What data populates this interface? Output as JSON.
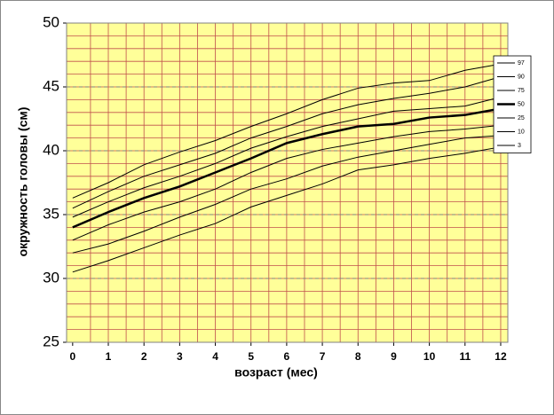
{
  "chart_data": {
    "type": "line",
    "x_label": "возраст (мес)",
    "y_label": "окружность головы (см)",
    "x": [
      0,
      1,
      2,
      3,
      4,
      5,
      6,
      7,
      8,
      9,
      10,
      11,
      12
    ],
    "xlim": [
      -0.17,
      12.2
    ],
    "xticks": [
      0,
      1,
      2,
      3,
      4,
      5,
      6,
      7,
      8,
      9,
      10,
      11,
      12
    ],
    "ylim": [
      25,
      50
    ],
    "yticks": [
      25,
      30,
      35,
      40,
      45,
      50
    ],
    "grid": true,
    "background": "#ffff99",
    "legend": "right",
    "series": [
      {
        "name": "97",
        "color": "#000000",
        "line_width": 1,
        "values": [
          36.3,
          37.5,
          38.9,
          39.9,
          40.8,
          41.9,
          42.9,
          44.0,
          44.9,
          45.3,
          45.5,
          46.3,
          46.8
        ]
      },
      {
        "name": "90",
        "color": "#000000",
        "line_width": 1,
        "values": [
          35.5,
          36.8,
          38.0,
          38.9,
          39.8,
          41.0,
          41.9,
          42.9,
          43.6,
          44.1,
          44.5,
          45.0,
          45.8
        ]
      },
      {
        "name": "75",
        "color": "#000000",
        "line_width": 1,
        "values": [
          34.8,
          36.0,
          37.1,
          38.0,
          39.0,
          40.2,
          41.1,
          41.9,
          42.5,
          43.1,
          43.3,
          43.5,
          44.2
        ]
      },
      {
        "name": "50",
        "color": "#000000",
        "line_width": 2.5,
        "values": [
          34.0,
          35.2,
          36.3,
          37.2,
          38.3,
          39.4,
          40.6,
          41.3,
          41.9,
          42.1,
          42.6,
          42.8,
          43.3
        ]
      },
      {
        "name": "25",
        "color": "#000000",
        "line_width": 1,
        "values": [
          33.0,
          34.2,
          35.2,
          36.0,
          37.0,
          38.3,
          39.4,
          40.1,
          40.6,
          41.1,
          41.5,
          41.7,
          42.0
        ]
      },
      {
        "name": "10",
        "color": "#000000",
        "line_width": 1,
        "values": [
          32.0,
          32.7,
          33.7,
          34.8,
          35.8,
          37.0,
          37.8,
          38.8,
          39.5,
          40.0,
          40.5,
          41.0,
          41.2
        ]
      },
      {
        "name": "3",
        "color": "#000000",
        "line_width": 1,
        "values": [
          30.5,
          31.4,
          32.4,
          33.4,
          34.3,
          35.6,
          36.5,
          37.4,
          38.5,
          38.9,
          39.4,
          39.8,
          40.3
        ]
      }
    ]
  }
}
